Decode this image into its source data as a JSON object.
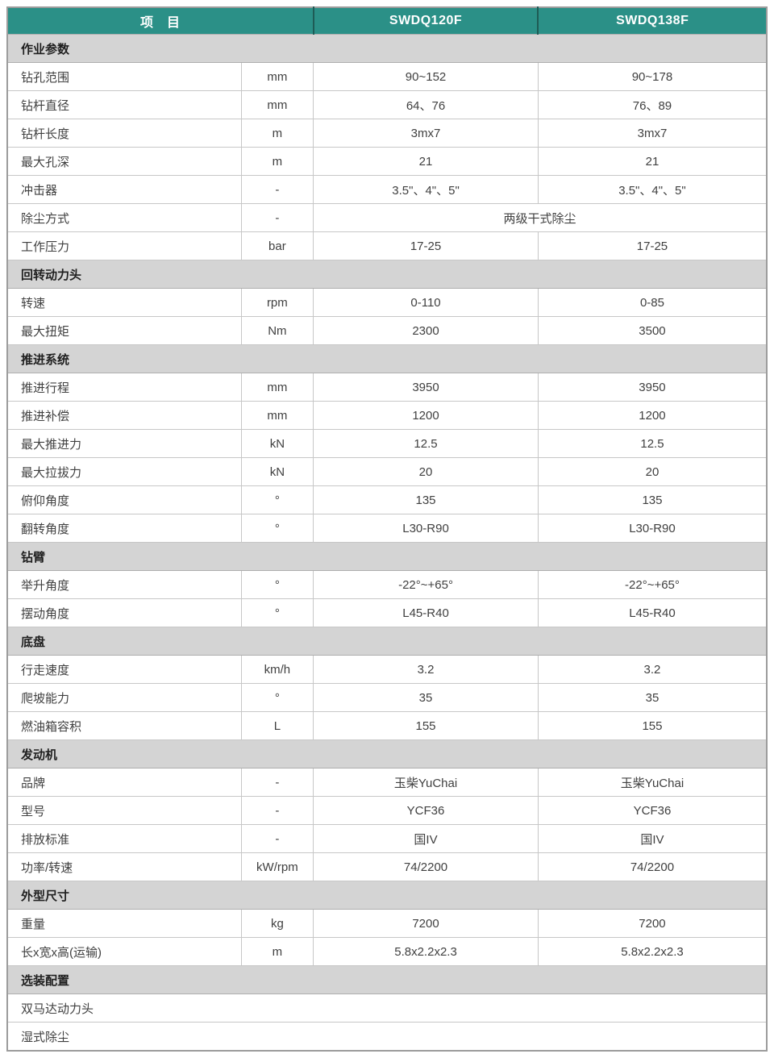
{
  "colors": {
    "accent_teal": "#2b9087",
    "header_divider": "#1e5b55",
    "section_gray": "#d4d4d4",
    "grid_line": "#c7c7c7"
  },
  "header": {
    "item": "项　目",
    "model1": "SWDQ120F",
    "model2": "SWDQ138F"
  },
  "sections": [
    {
      "title": "作业参数",
      "rows": [
        {
          "label": "钻孔范围",
          "unit": "mm",
          "v1": "90~152",
          "v2": "90~178"
        },
        {
          "label": "钻杆直径",
          "unit": "mm",
          "v1": "64、76",
          "v2": "76、89"
        },
        {
          "label": "钻杆长度",
          "unit": "m",
          "v1": "3mx7",
          "v2": "3mx7"
        },
        {
          "label": "最大孔深",
          "unit": "m",
          "v1": "21",
          "v2": "21"
        },
        {
          "label": "冲击器",
          "unit": "-",
          "v1": "3.5\"、4\"、5\"",
          "v2": "3.5\"、4\"、5\""
        },
        {
          "label": "除尘方式",
          "unit": "-",
          "merged": "两级干式除尘"
        },
        {
          "label": "工作压力",
          "unit": "bar",
          "v1": "17-25",
          "v2": "17-25"
        }
      ]
    },
    {
      "title": "回转动力头",
      "rows": [
        {
          "label": "转速",
          "unit": "rpm",
          "v1": "0-110",
          "v2": "0-85"
        },
        {
          "label": "最大扭矩",
          "unit": "Nm",
          "v1": "2300",
          "v2": "3500"
        }
      ]
    },
    {
      "title": "推进系统",
      "rows": [
        {
          "label": "推进行程",
          "unit": "mm",
          "v1": "3950",
          "v2": "3950"
        },
        {
          "label": "推进补偿",
          "unit": "mm",
          "v1": "1200",
          "v2": "1200"
        },
        {
          "label": "最大推进力",
          "unit": "kN",
          "v1": "12.5",
          "v2": "12.5"
        },
        {
          "label": "最大拉拔力",
          "unit": "kN",
          "v1": "20",
          "v2": "20"
        },
        {
          "label": "俯仰角度",
          "unit": "°",
          "v1": "135",
          "v2": "135"
        },
        {
          "label": "翻转角度",
          "unit": "°",
          "v1": "L30-R90",
          "v2": "L30-R90"
        }
      ]
    },
    {
      "title": "钻臂",
      "rows": [
        {
          "label": "举升角度",
          "unit": "°",
          "v1": "-22°~+65°",
          "v2": "-22°~+65°"
        },
        {
          "label": "摆动角度",
          "unit": "°",
          "v1": "L45-R40",
          "v2": "L45-R40"
        }
      ]
    },
    {
      "title": "底盘",
      "rows": [
        {
          "label": "行走速度",
          "unit": "km/h",
          "v1": "3.2",
          "v2": "3.2"
        },
        {
          "label": "爬坡能力",
          "unit": "°",
          "v1": "35",
          "v2": "35"
        },
        {
          "label": "燃油箱容积",
          "unit": "L",
          "v1": "155",
          "v2": "155"
        }
      ]
    },
    {
      "title": "发动机",
      "rows": [
        {
          "label": "品牌",
          "unit": "-",
          "v1": "玉柴YuChai",
          "v2": "玉柴YuChai"
        },
        {
          "label": "型号",
          "unit": "-",
          "v1": "YCF36",
          "v2": "YCF36"
        },
        {
          "label": "排放标准",
          "unit": "-",
          "v1": "国IV",
          "v2": "国IV"
        },
        {
          "label": "功率/转速",
          "unit": "kW/rpm",
          "v1": "74/2200",
          "v2": "74/2200"
        }
      ]
    },
    {
      "title": "外型尺寸",
      "rows": [
        {
          "label": "重量",
          "unit": "kg",
          "v1": "7200",
          "v2": "7200"
        },
        {
          "label": "长x宽x高(运输)",
          "unit": "m",
          "v1": "5.8x2.2x2.3",
          "v2": "5.8x2.2x2.3"
        }
      ]
    },
    {
      "title": "选装配置",
      "options": [
        "双马达动力头",
        "湿式除尘"
      ]
    }
  ]
}
